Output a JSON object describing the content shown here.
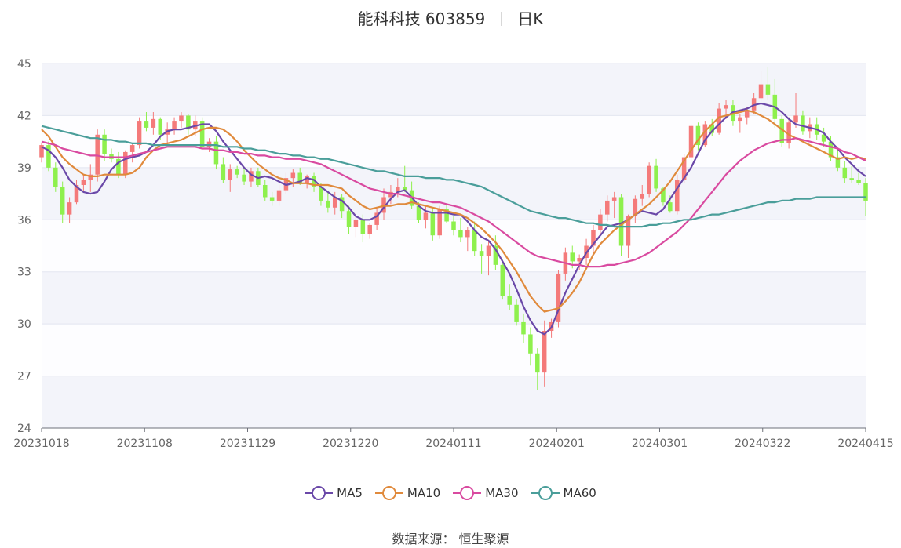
{
  "title": {
    "name": "能科科技 603859",
    "period": "日K"
  },
  "source": {
    "label": "数据来源：",
    "value": "恒生聚源"
  },
  "colors": {
    "up": "#f47a7a",
    "down": "#8ef04d",
    "MA5": "#6a48a8",
    "MA10": "#e08a3c",
    "MA30": "#d94aa0",
    "MA60": "#4a9e9a"
  },
  "chart_data": {
    "type": "candlestick",
    "ylim": [
      24,
      45
    ],
    "yticks": [
      24,
      27,
      30,
      33,
      36,
      39,
      42,
      45
    ],
    "x_range": [
      "20231018",
      "20240415"
    ],
    "xticks": [
      "20231018",
      "20231108",
      "20231129",
      "20231220",
      "20240111",
      "20240201",
      "20240301",
      "20240322",
      "20240415"
    ],
    "legend": [
      "MA5",
      "MA10",
      "MA30",
      "MA60"
    ],
    "grid": true,
    "candles": [
      [
        39.6,
        40.4,
        39.3,
        40.3
      ],
      [
        40.3,
        40.5,
        38.8,
        39.0
      ],
      [
        39.0,
        39.3,
        37.6,
        37.9
      ],
      [
        37.9,
        38.2,
        35.8,
        36.3
      ],
      [
        36.3,
        37.3,
        35.8,
        37.0
      ],
      [
        37.0,
        38.3,
        36.9,
        38.0
      ],
      [
        38.0,
        38.6,
        37.6,
        38.3
      ],
      [
        38.3,
        39.2,
        37.6,
        38.6
      ],
      [
        38.6,
        41.2,
        38.2,
        40.9
      ],
      [
        40.9,
        41.2,
        39.4,
        39.8
      ],
      [
        39.8,
        40.1,
        39.3,
        39.5
      ],
      [
        39.5,
        39.9,
        38.4,
        38.6
      ],
      [
        38.6,
        40.0,
        38.4,
        39.9
      ],
      [
        39.9,
        40.4,
        39.3,
        40.3
      ],
      [
        40.3,
        41.9,
        40.1,
        41.7
      ],
      [
        41.7,
        42.2,
        41.1,
        41.3
      ],
      [
        41.3,
        42.2,
        40.9,
        41.8
      ],
      [
        41.8,
        41.9,
        40.6,
        40.9
      ],
      [
        40.9,
        41.6,
        40.4,
        41.2
      ],
      [
        41.2,
        41.9,
        40.9,
        41.7
      ],
      [
        41.7,
        42.2,
        41.3,
        42.0
      ],
      [
        42.0,
        42.1,
        40.9,
        41.2
      ],
      [
        41.2,
        42.0,
        40.8,
        41.7
      ],
      [
        41.7,
        41.9,
        40.1,
        40.2
      ],
      [
        40.2,
        40.7,
        39.9,
        40.5
      ],
      [
        40.5,
        40.8,
        38.9,
        39.2
      ],
      [
        39.2,
        39.6,
        38.1,
        38.3
      ],
      [
        38.3,
        39.2,
        37.6,
        38.9
      ],
      [
        38.9,
        39.1,
        38.4,
        38.6
      ],
      [
        38.6,
        38.9,
        38.0,
        38.2
      ],
      [
        38.2,
        39.0,
        37.9,
        38.8
      ],
      [
        38.8,
        39.0,
        37.9,
        38.0
      ],
      [
        38.0,
        38.3,
        37.1,
        37.3
      ],
      [
        37.3,
        37.6,
        36.8,
        37.1
      ],
      [
        37.1,
        38.0,
        36.8,
        37.7
      ],
      [
        37.7,
        38.7,
        37.5,
        38.4
      ],
      [
        38.4,
        38.9,
        37.9,
        38.7
      ],
      [
        38.7,
        39.0,
        38.0,
        38.1
      ],
      [
        38.1,
        38.6,
        37.8,
        38.5
      ],
      [
        38.5,
        38.7,
        37.6,
        37.9
      ],
      [
        37.9,
        38.1,
        36.8,
        37.1
      ],
      [
        37.1,
        37.6,
        36.4,
        36.7
      ],
      [
        36.7,
        37.6,
        36.3,
        37.3
      ],
      [
        37.3,
        37.5,
        36.1,
        36.5
      ],
      [
        36.5,
        36.8,
        35.2,
        35.6
      ],
      [
        35.6,
        36.4,
        35.0,
        36.0
      ],
      [
        36.0,
        36.3,
        34.7,
        35.2
      ],
      [
        35.2,
        35.8,
        34.9,
        35.7
      ],
      [
        35.7,
        36.6,
        35.4,
        36.4
      ],
      [
        36.4,
        37.8,
        36.0,
        37.3
      ],
      [
        37.3,
        38.0,
        36.9,
        37.6
      ],
      [
        37.6,
        38.4,
        37.3,
        37.9
      ],
      [
        37.9,
        39.1,
        37.6,
        37.7
      ],
      [
        37.7,
        38.2,
        36.6,
        36.8
      ],
      [
        36.8,
        37.0,
        35.8,
        36.0
      ],
      [
        36.0,
        36.8,
        35.5,
        36.4
      ],
      [
        36.4,
        36.7,
        34.8,
        35.1
      ],
      [
        35.1,
        36.8,
        34.9,
        36.6
      ],
      [
        36.6,
        36.9,
        35.8,
        35.9
      ],
      [
        35.9,
        36.2,
        35.1,
        35.4
      ],
      [
        35.4,
        36.1,
        34.7,
        35.0
      ],
      [
        35.0,
        35.6,
        34.2,
        35.4
      ],
      [
        35.4,
        35.9,
        33.9,
        34.2
      ],
      [
        34.2,
        34.6,
        32.9,
        33.9
      ],
      [
        33.9,
        34.8,
        32.8,
        34.5
      ],
      [
        34.5,
        35.1,
        33.1,
        33.4
      ],
      [
        33.4,
        33.7,
        31.4,
        31.6
      ],
      [
        31.6,
        32.3,
        30.8,
        31.1
      ],
      [
        31.1,
        31.4,
        29.9,
        30.1
      ],
      [
        30.1,
        30.6,
        28.9,
        29.4
      ],
      [
        29.4,
        29.8,
        27.6,
        28.3
      ],
      [
        28.3,
        28.6,
        26.2,
        27.2
      ],
      [
        27.2,
        30.2,
        26.4,
        29.6
      ],
      [
        29.6,
        30.3,
        29.2,
        30.1
      ],
      [
        30.1,
        33.1,
        29.8,
        32.9
      ],
      [
        32.9,
        34.4,
        32.5,
        34.1
      ],
      [
        34.1,
        34.5,
        33.2,
        33.6
      ],
      [
        33.6,
        34.0,
        33.1,
        33.8
      ],
      [
        33.8,
        34.9,
        33.4,
        34.5
      ],
      [
        34.5,
        35.7,
        34.1,
        35.4
      ],
      [
        35.4,
        36.6,
        35.2,
        36.3
      ],
      [
        36.3,
        37.4,
        35.9,
        37.1
      ],
      [
        37.1,
        37.6,
        36.1,
        37.3
      ],
      [
        37.3,
        37.5,
        33.9,
        34.5
      ],
      [
        34.5,
        36.3,
        33.8,
        36.2
      ],
      [
        36.2,
        37.4,
        35.8,
        37.2
      ],
      [
        37.2,
        38.0,
        36.8,
        37.5
      ],
      [
        37.5,
        39.3,
        37.3,
        39.1
      ],
      [
        39.1,
        39.5,
        37.6,
        37.8
      ],
      [
        37.8,
        37.9,
        36.8,
        37.0
      ],
      [
        37.0,
        37.4,
        36.4,
        36.5
      ],
      [
        36.5,
        38.6,
        36.3,
        38.3
      ],
      [
        38.3,
        39.8,
        38.1,
        39.6
      ],
      [
        39.6,
        41.5,
        39.4,
        41.4
      ],
      [
        41.4,
        41.6,
        40.0,
        40.3
      ],
      [
        40.3,
        41.7,
        40.2,
        41.5
      ],
      [
        41.5,
        41.8,
        40.8,
        41.0
      ],
      [
        41.0,
        42.7,
        40.9,
        42.4
      ],
      [
        42.4,
        42.9,
        41.8,
        42.6
      ],
      [
        42.6,
        42.9,
        41.4,
        41.7
      ],
      [
        41.7,
        42.1,
        41.0,
        41.9
      ],
      [
        41.9,
        42.5,
        41.5,
        42.3
      ],
      [
        42.3,
        43.3,
        42.1,
        43.0
      ],
      [
        43.0,
        44.6,
        42.8,
        43.8
      ],
      [
        43.8,
        44.8,
        42.9,
        43.2
      ],
      [
        43.2,
        44.1,
        41.3,
        41.8
      ],
      [
        41.8,
        42.0,
        40.2,
        40.4
      ],
      [
        40.4,
        41.9,
        40.1,
        41.6
      ],
      [
        41.6,
        43.3,
        41.3,
        42.0
      ],
      [
        42.0,
        42.3,
        40.9,
        41.1
      ],
      [
        41.1,
        41.9,
        40.7,
        41.5
      ],
      [
        41.5,
        41.9,
        40.6,
        40.9
      ],
      [
        40.9,
        41.3,
        40.2,
        40.5
      ],
      [
        40.5,
        40.8,
        39.4,
        39.6
      ],
      [
        39.6,
        40.1,
        38.8,
        39.0
      ],
      [
        39.0,
        39.4,
        38.1,
        38.4
      ],
      [
        38.4,
        39.1,
        38.1,
        38.3
      ],
      [
        38.3,
        38.7,
        38.0,
        38.1
      ],
      [
        38.1,
        38.4,
        36.2,
        37.1
      ]
    ],
    "series": [
      {
        "name": "MA5",
        "values": [
          40.2,
          40.0,
          39.6,
          39.0,
          38.3,
          37.9,
          37.6,
          37.5,
          37.6,
          38.2,
          38.9,
          39.3,
          39.5,
          39.6,
          39.7,
          39.9,
          40.3,
          40.8,
          41.1,
          41.2,
          41.2,
          41.3,
          41.4,
          41.5,
          41.5,
          41.1,
          40.5,
          40.0,
          39.5,
          39.0,
          38.6,
          38.4,
          38.5,
          38.4,
          38.2,
          38.0,
          38.1,
          38.2,
          38.4,
          38.3,
          37.9,
          37.6,
          37.3,
          37.1,
          36.7,
          36.2,
          36.0,
          36.0,
          36.2,
          36.7,
          37.2,
          37.6,
          37.7,
          37.3,
          36.8,
          36.5,
          36.4,
          36.4,
          36.4,
          36.3,
          36.3,
          35.9,
          35.4,
          35.0,
          34.8,
          34.3,
          33.6,
          32.9,
          32.0,
          31.0,
          30.2,
          29.6,
          29.4,
          29.8,
          30.8,
          31.8,
          32.6,
          33.4,
          34.1,
          34.6,
          35.1,
          35.6,
          35.7,
          35.8,
          36.0,
          36.3,
          36.5,
          36.4,
          36.3,
          36.6,
          37.2,
          37.8,
          38.4,
          39.0,
          39.8,
          40.6,
          41.1,
          41.5,
          41.9,
          42.2,
          42.3,
          42.4,
          42.6,
          42.7,
          42.6,
          42.5,
          42.2,
          41.8,
          41.5,
          41.4,
          41.3,
          41.2,
          41.0,
          40.5,
          40.1,
          39.6,
          39.2,
          38.8,
          38.5
        ]
      },
      {
        "name": "MA10",
        "values": [
          41.2,
          40.8,
          40.2,
          39.6,
          39.2,
          38.9,
          38.6,
          38.5,
          38.5,
          38.6,
          38.6,
          38.6,
          38.6,
          38.7,
          39.0,
          39.6,
          40.0,
          40.3,
          40.4,
          40.5,
          40.6,
          40.8,
          41.0,
          41.2,
          41.3,
          41.3,
          41.2,
          40.9,
          40.5,
          40.0,
          39.6,
          39.2,
          38.9,
          38.6,
          38.4,
          38.3,
          38.1,
          38.1,
          38.1,
          38.0,
          38.0,
          38.0,
          37.9,
          37.8,
          37.4,
          37.1,
          36.8,
          36.6,
          36.7,
          36.8,
          36.8,
          36.9,
          36.9,
          37.0,
          36.9,
          36.8,
          36.7,
          36.6,
          36.5,
          36.4,
          36.3,
          36.1,
          35.8,
          35.5,
          35.1,
          34.7,
          34.2,
          33.6,
          33.0,
          32.3,
          31.6,
          31.1,
          30.7,
          30.8,
          30.9,
          31.3,
          31.8,
          32.4,
          33.2,
          34.0,
          34.6,
          35.0,
          35.4,
          35.7,
          36.0,
          36.3,
          36.6,
          36.9,
          37.3,
          37.7,
          38.2,
          38.8,
          39.4,
          40.0,
          40.6,
          41.1,
          41.5,
          41.9,
          42.0,
          42.1,
          42.2,
          42.3,
          42.2,
          42.0,
          41.8,
          41.5,
          41.2,
          40.9,
          40.7,
          40.5,
          40.3,
          40.1,
          39.9,
          39.7,
          39.5,
          39.6,
          39.5,
          39.6,
          39.5
        ]
      },
      {
        "name": "MA30",
        "values": [
          40.5,
          40.4,
          40.3,
          40.1,
          40.0,
          39.9,
          39.8,
          39.7,
          39.7,
          39.6,
          39.6,
          39.6,
          39.6,
          39.7,
          39.8,
          39.9,
          40.0,
          40.1,
          40.2,
          40.2,
          40.2,
          40.2,
          40.2,
          40.1,
          40.1,
          40.0,
          40.0,
          39.9,
          39.9,
          39.8,
          39.8,
          39.7,
          39.7,
          39.6,
          39.6,
          39.5,
          39.5,
          39.5,
          39.4,
          39.3,
          39.2,
          39.0,
          38.8,
          38.6,
          38.4,
          38.2,
          38.0,
          37.8,
          37.7,
          37.6,
          37.5,
          37.5,
          37.4,
          37.3,
          37.2,
          37.1,
          37.0,
          37.0,
          36.9,
          36.8,
          36.7,
          36.5,
          36.3,
          36.1,
          35.9,
          35.6,
          35.3,
          35.0,
          34.7,
          34.4,
          34.1,
          33.9,
          33.8,
          33.7,
          33.6,
          33.5,
          33.4,
          33.4,
          33.3,
          33.3,
          33.3,
          33.4,
          33.4,
          33.5,
          33.6,
          33.7,
          33.9,
          34.1,
          34.4,
          34.7,
          35.0,
          35.3,
          35.7,
          36.1,
          36.6,
          37.1,
          37.6,
          38.1,
          38.6,
          39.0,
          39.4,
          39.7,
          40.0,
          40.2,
          40.4,
          40.5,
          40.6,
          40.6,
          40.7,
          40.6,
          40.5,
          40.4,
          40.3,
          40.2,
          40.1,
          39.9,
          39.8,
          39.6,
          39.4
        ]
      },
      {
        "name": "MA60",
        "values": [
          41.4,
          41.3,
          41.2,
          41.1,
          41.0,
          40.9,
          40.8,
          40.7,
          40.7,
          40.6,
          40.6,
          40.5,
          40.5,
          40.4,
          40.4,
          40.4,
          40.3,
          40.3,
          40.3,
          40.3,
          40.3,
          40.3,
          40.3,
          40.3,
          40.3,
          40.3,
          40.2,
          40.2,
          40.2,
          40.1,
          40.1,
          40.0,
          40.0,
          39.9,
          39.8,
          39.8,
          39.7,
          39.7,
          39.6,
          39.6,
          39.5,
          39.5,
          39.4,
          39.3,
          39.2,
          39.1,
          39.0,
          38.9,
          38.8,
          38.8,
          38.7,
          38.6,
          38.5,
          38.5,
          38.5,
          38.4,
          38.4,
          38.4,
          38.3,
          38.3,
          38.2,
          38.1,
          38.0,
          37.9,
          37.7,
          37.5,
          37.3,
          37.1,
          36.9,
          36.7,
          36.5,
          36.4,
          36.3,
          36.2,
          36.1,
          36.1,
          36.0,
          35.9,
          35.8,
          35.8,
          35.7,
          35.7,
          35.6,
          35.6,
          35.6,
          35.6,
          35.6,
          35.7,
          35.7,
          35.8,
          35.8,
          35.9,
          36.0,
          36.0,
          36.1,
          36.2,
          36.3,
          36.3,
          36.4,
          36.5,
          36.6,
          36.7,
          36.8,
          36.9,
          37.0,
          37.0,
          37.1,
          37.1,
          37.2,
          37.2,
          37.2,
          37.3,
          37.3,
          37.3,
          37.3,
          37.3,
          37.3,
          37.3,
          37.3
        ]
      }
    ]
  }
}
